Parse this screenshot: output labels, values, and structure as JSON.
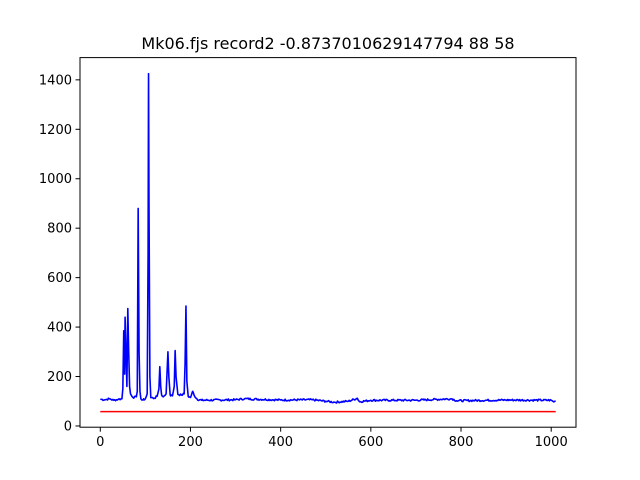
{
  "chart_data": {
    "type": "line",
    "title": "Mk06.fjs record2 -0.8737010629147794 88 58",
    "xlabel": "",
    "ylabel": "",
    "xlim": [
      -45,
      1055
    ],
    "ylim": [
      -5,
      1490
    ],
    "grid": false,
    "legend": "none",
    "x_ticks": [
      0,
      200,
      400,
      600,
      800,
      1000
    ],
    "y_ticks": [
      0,
      200,
      400,
      600,
      800,
      1000,
      1200,
      1400
    ],
    "series": [
      {
        "color": "#0000ff",
        "baseline": 104,
        "noise": 4,
        "x_start": 0,
        "x_end": 1010,
        "x_step": 2,
        "points": [
          [
            0,
            108
          ],
          [
            10,
            106
          ],
          [
            20,
            110
          ],
          [
            30,
            104
          ],
          [
            40,
            108
          ],
          [
            48,
            110
          ],
          [
            50,
            150
          ],
          [
            52,
            385
          ],
          [
            54,
            210
          ],
          [
            55,
            440
          ],
          [
            57,
            300
          ],
          [
            59,
            160
          ],
          [
            61,
            475
          ],
          [
            63,
            300
          ],
          [
            65,
            160
          ],
          [
            67,
            130
          ],
          [
            70,
            120
          ],
          [
            75,
            115
          ],
          [
            80,
            118
          ],
          [
            82,
            140
          ],
          [
            84,
            880
          ],
          [
            86,
            300
          ],
          [
            88,
            140
          ],
          [
            90,
            110
          ],
          [
            95,
            105
          ],
          [
            100,
            110
          ],
          [
            104,
            130
          ],
          [
            106,
            700
          ],
          [
            107,
            1425
          ],
          [
            108,
            900
          ],
          [
            110,
            200
          ],
          [
            112,
            115
          ],
          [
            120,
            112
          ],
          [
            126,
            120
          ],
          [
            130,
            150
          ],
          [
            132,
            240
          ],
          [
            134,
            160
          ],
          [
            136,
            125
          ],
          [
            140,
            118
          ],
          [
            146,
            130
          ],
          [
            150,
            300
          ],
          [
            152,
            200
          ],
          [
            155,
            125
          ],
          [
            160,
            122
          ],
          [
            164,
            160
          ],
          [
            166,
            305
          ],
          [
            168,
            200
          ],
          [
            172,
            128
          ],
          [
            180,
            125
          ],
          [
            186,
            130
          ],
          [
            188,
            250
          ],
          [
            190,
            485
          ],
          [
            192,
            180
          ],
          [
            195,
            120
          ],
          [
            200,
            115
          ],
          [
            205,
            140
          ],
          [
            208,
            125
          ],
          [
            215,
            108
          ],
          [
            225,
            104
          ],
          [
            300,
            106
          ],
          [
            320,
            110
          ],
          [
            400,
            105
          ],
          [
            470,
            106
          ],
          [
            500,
            100
          ],
          [
            520,
            96
          ],
          [
            550,
            100
          ],
          [
            570,
            112
          ],
          [
            575,
            98
          ],
          [
            600,
            104
          ],
          [
            700,
            104
          ],
          [
            780,
            110
          ],
          [
            790,
            102
          ],
          [
            900,
            105
          ],
          [
            1000,
            104
          ],
          [
            1005,
            98
          ],
          [
            1010,
            100
          ]
        ]
      },
      {
        "color": "#ff0000",
        "points": [
          [
            0,
            58
          ],
          [
            1010,
            58
          ]
        ]
      }
    ]
  }
}
